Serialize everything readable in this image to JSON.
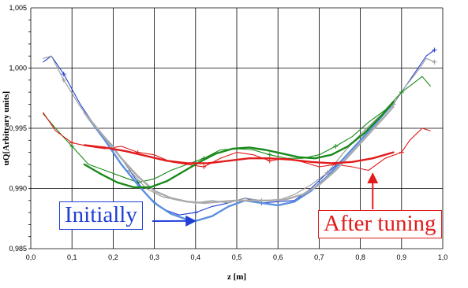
{
  "chart_data": {
    "type": "line",
    "xlabel": "z [m]",
    "ylabel": "uQ[Arbitrary units]",
    "xlim": [
      0.0,
      1.0
    ],
    "ylim": [
      0.985,
      1.005
    ],
    "xticks": [
      "0,0",
      "0,1",
      "0,2",
      "0,3",
      "0,4",
      "0,5",
      "0,6",
      "0,7",
      "0,8",
      "0,9",
      "1,0"
    ],
    "yticks": [
      "0,985",
      "0,990",
      "0,995",
      "1,000",
      "1,005"
    ],
    "grid": true,
    "annotations": [
      {
        "text": "Initially",
        "color": "#1f3fd6",
        "points_to": [
          0.4,
          0.9873
        ]
      },
      {
        "text": "After tuning",
        "color": "#e21b1b",
        "points_to": [
          0.83,
          0.9915
        ]
      }
    ],
    "series": [
      {
        "color": "#1f3fd6",
        "style": "measured",
        "x": [
          0.03,
          0.05,
          0.08,
          0.12,
          0.16,
          0.2,
          0.24,
          0.28,
          0.32,
          0.36,
          0.4,
          0.44,
          0.48,
          0.52,
          0.56,
          0.6,
          0.64,
          0.68,
          0.72,
          0.76,
          0.8,
          0.84,
          0.88,
          0.91,
          0.94,
          0.96,
          0.98
        ],
        "y": [
          1.0005,
          1.001,
          0.9995,
          0.997,
          0.995,
          0.9935,
          0.9915,
          0.9895,
          0.9883,
          0.9878,
          0.988,
          0.9885,
          0.9888,
          0.9892,
          0.9888,
          0.9889,
          0.989,
          0.99,
          0.9913,
          0.9925,
          0.994,
          0.9955,
          0.997,
          0.9985,
          1.0,
          1.001,
          1.0015
        ]
      },
      {
        "color": "#999999",
        "style": "measured",
        "x": [
          0.03,
          0.05,
          0.08,
          0.12,
          0.16,
          0.2,
          0.24,
          0.28,
          0.32,
          0.36,
          0.4,
          0.44,
          0.48,
          0.52,
          0.56,
          0.6,
          0.64,
          0.68,
          0.72,
          0.76,
          0.8,
          0.84,
          0.88,
          0.91,
          0.94,
          0.96,
          0.98
        ],
        "y": [
          1.0008,
          1.001,
          0.999,
          0.9968,
          0.995,
          0.9935,
          0.9915,
          0.99,
          0.9893,
          0.989,
          0.9888,
          0.989,
          0.9888,
          0.9892,
          0.989,
          0.989,
          0.9895,
          0.9903,
          0.9913,
          0.993,
          0.9945,
          0.9958,
          0.997,
          0.9985,
          0.9998,
          1.0008,
          1.0005
        ]
      },
      {
        "color": "#1a8a1a",
        "style": "measured",
        "x": [
          0.03,
          0.06,
          0.1,
          0.14,
          0.18,
          0.22,
          0.26,
          0.3,
          0.34,
          0.38,
          0.42,
          0.46,
          0.5,
          0.54,
          0.58,
          0.62,
          0.66,
          0.7,
          0.74,
          0.78,
          0.82,
          0.86,
          0.9,
          0.92,
          0.95,
          0.97
        ],
        "y": [
          0.9962,
          0.995,
          0.9935,
          0.992,
          0.9915,
          0.991,
          0.9905,
          0.9908,
          0.9915,
          0.992,
          0.9925,
          0.9932,
          0.9933,
          0.9932,
          0.9928,
          0.9925,
          0.9925,
          0.9928,
          0.9935,
          0.9943,
          0.9955,
          0.9965,
          0.998,
          0.9985,
          0.9993,
          0.9985
        ]
      },
      {
        "color": "#e21b1b",
        "style": "measured",
        "x": [
          0.03,
          0.06,
          0.1,
          0.14,
          0.18,
          0.22,
          0.26,
          0.3,
          0.34,
          0.38,
          0.42,
          0.46,
          0.5,
          0.54,
          0.58,
          0.62,
          0.66,
          0.7,
          0.74,
          0.78,
          0.82,
          0.86,
          0.9,
          0.92,
          0.95,
          0.97
        ],
        "y": [
          0.9963,
          0.9948,
          0.9938,
          0.9935,
          0.9933,
          0.9935,
          0.993,
          0.9928,
          0.9922,
          0.992,
          0.9918,
          0.9925,
          0.993,
          0.9928,
          0.9923,
          0.9925,
          0.9922,
          0.9918,
          0.992,
          0.9918,
          0.9915,
          0.9925,
          0.993,
          0.994,
          0.995,
          0.9948
        ]
      },
      {
        "color": "#5b8fe0",
        "style": "fit",
        "x": [
          0.13,
          0.18,
          0.22,
          0.26,
          0.3,
          0.34,
          0.38,
          0.4,
          0.44,
          0.48,
          0.52,
          0.56,
          0.6,
          0.64,
          0.68,
          0.72,
          0.76,
          0.8,
          0.84,
          0.87
        ],
        "y": [
          0.9963,
          0.994,
          0.992,
          0.9903,
          0.9888,
          0.9879,
          0.9874,
          0.9873,
          0.9877,
          0.9885,
          0.989,
          0.9888,
          0.9886,
          0.9889,
          0.9898,
          0.991,
          0.9925,
          0.994,
          0.9955,
          0.9967
        ]
      },
      {
        "color": "#aaaaaa",
        "style": "fit",
        "x": [
          0.13,
          0.18,
          0.22,
          0.26,
          0.3,
          0.34,
          0.38,
          0.42,
          0.46,
          0.5,
          0.54,
          0.58,
          0.62,
          0.66,
          0.7,
          0.74,
          0.78,
          0.82,
          0.86,
          0.88
        ],
        "y": [
          0.9963,
          0.9942,
          0.9925,
          0.991,
          0.9898,
          0.9892,
          0.9889,
          0.9888,
          0.9889,
          0.989,
          0.989,
          0.989,
          0.9891,
          0.9895,
          0.9903,
          0.9915,
          0.993,
          0.9945,
          0.996,
          0.9968
        ]
      },
      {
        "color": "#1a8a1a",
        "style": "fit",
        "x": [
          0.13,
          0.17,
          0.21,
          0.25,
          0.29,
          0.33,
          0.37,
          0.41,
          0.45,
          0.49,
          0.53,
          0.57,
          0.61,
          0.65,
          0.69,
          0.73,
          0.77,
          0.81,
          0.85,
          0.88
        ],
        "y": [
          0.992,
          0.9912,
          0.9905,
          0.9901,
          0.9901,
          0.9906,
          0.9914,
          0.9922,
          0.9929,
          0.9933,
          0.9934,
          0.9932,
          0.9929,
          0.9926,
          0.9925,
          0.9928,
          0.9935,
          0.9946,
          0.996,
          0.9972
        ]
      },
      {
        "color": "#e21b1b",
        "style": "fit",
        "x": [
          0.13,
          0.18,
          0.23,
          0.28,
          0.33,
          0.38,
          0.43,
          0.48,
          0.53,
          0.58,
          0.63,
          0.68,
          0.73,
          0.78,
          0.83,
          0.88
        ],
        "y": [
          0.9936,
          0.9934,
          0.9931,
          0.9927,
          0.9923,
          0.9921,
          0.9921,
          0.9923,
          0.9925,
          0.9925,
          0.9924,
          0.9922,
          0.9921,
          0.9922,
          0.9925,
          0.993
        ]
      }
    ]
  }
}
